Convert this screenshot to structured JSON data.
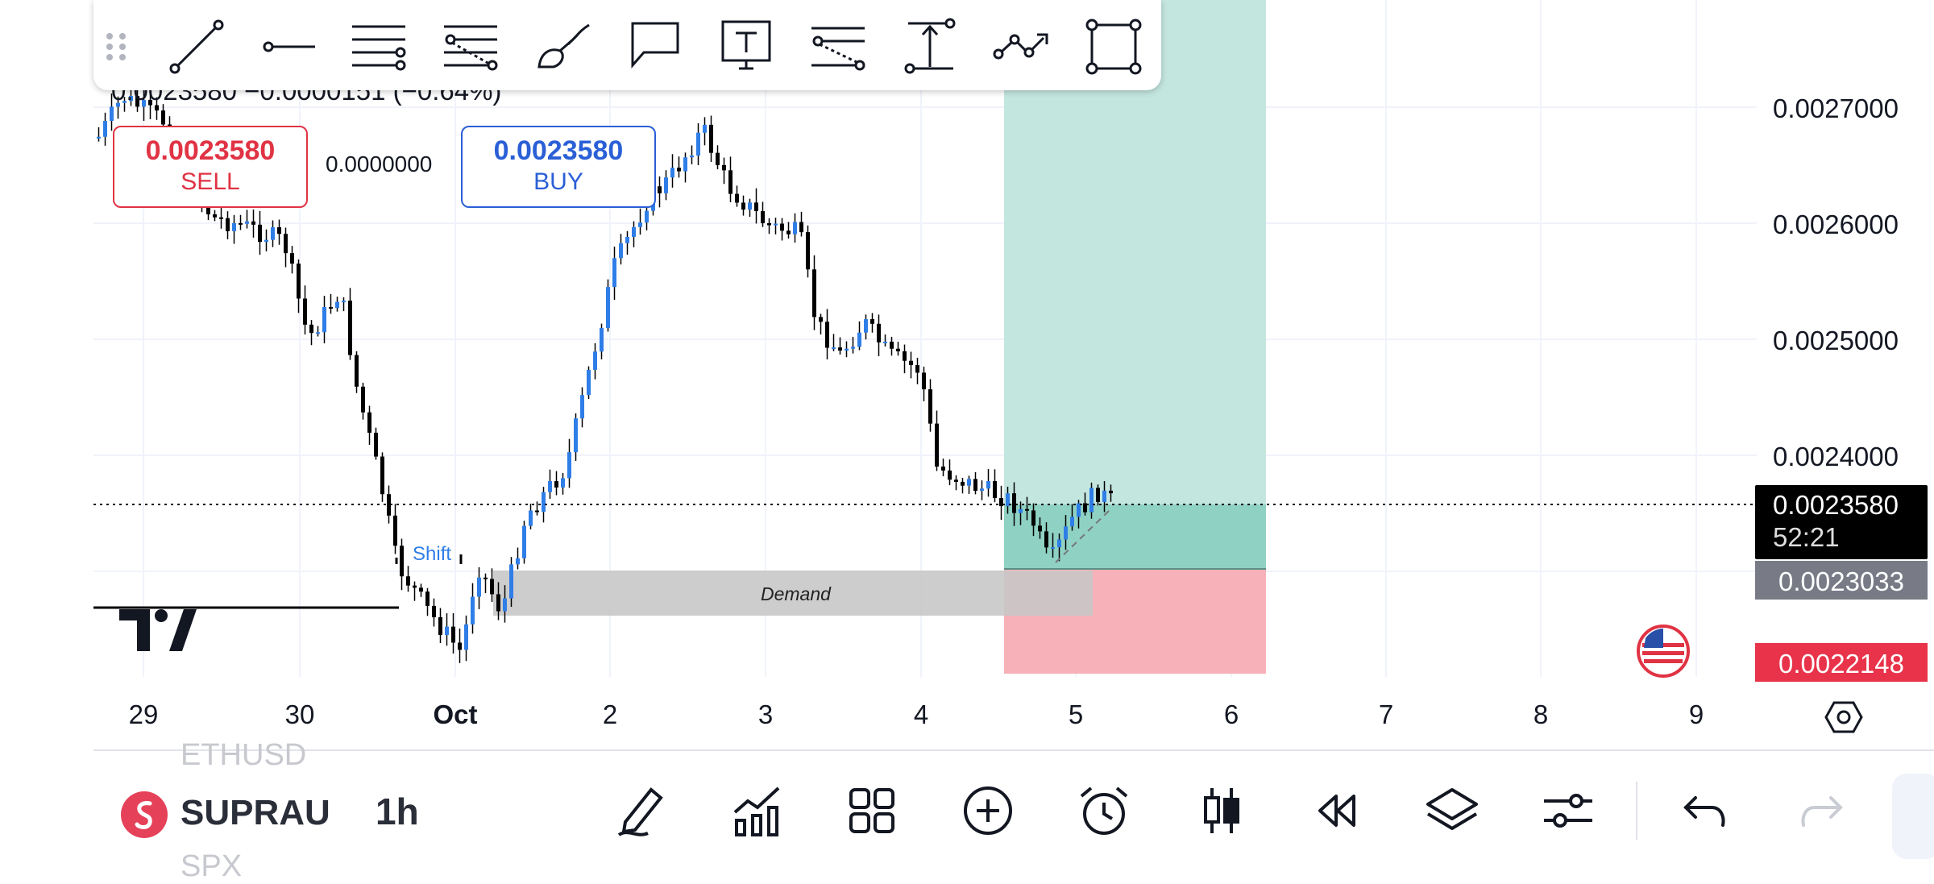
{
  "header": {
    "ohlc_change": "0.0023580 −0.0000151 (−0.64%)"
  },
  "trade": {
    "sell_price": "0.0023580",
    "sell_label": "SELL",
    "spread": "0.0000000",
    "buy_price": "0.0023580",
    "buy_label": "BUY"
  },
  "price_axis": {
    "ticks": [
      "0.0027000",
      "0.0026000",
      "0.0025000",
      "0.0024000"
    ],
    "current_price": "0.0023580",
    "countdown": "52:21",
    "stop_price": "0.0023033",
    "bottom_price": "0.0022148"
  },
  "time_axis": {
    "labels": [
      "29",
      "30",
      "Oct",
      "2",
      "3",
      "4",
      "5",
      "6",
      "7",
      "8",
      "9"
    ]
  },
  "annotations": {
    "shift": "Shift",
    "demand": "Demand"
  },
  "drawing_tools": [
    "drag-handle-icon",
    "trend-line-icon",
    "horizontal-ray-icon",
    "parallel-channel-icon",
    "fib-retracement-icon",
    "brush-icon",
    "callout-icon",
    "text-icon",
    "gann-fan-icon",
    "price-range-icon",
    "path-icon",
    "rectangle-icon"
  ],
  "bottom_bar": {
    "symbol_above": "ETHUSD",
    "symbol": "SUPRAU",
    "symbol_below": "SPX",
    "interval": "1h"
  },
  "colors": {
    "up_candle": "#2f7ee8",
    "down_candle": "#000000",
    "sell": "#e03344",
    "buy": "#2a5fd6",
    "profit_zone": "#c3e6df",
    "profit_zone_dark": "#8fd1c3",
    "loss_zone": "#f7b1b8",
    "demand_zone": "#cccccc",
    "logo_red": "#e5425a"
  }
}
